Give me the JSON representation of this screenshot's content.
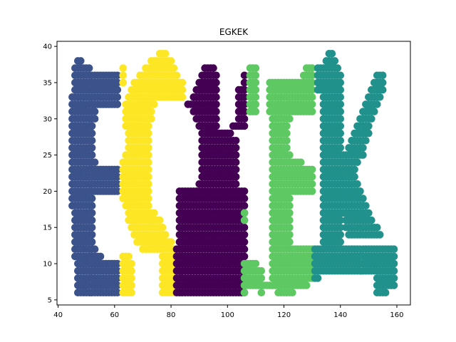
{
  "chart_data": {
    "type": "scatter",
    "title": "EGKEK",
    "xlabel": "",
    "ylabel": "",
    "xlim": [
      39.6,
      164.8
    ],
    "ylim": [
      4.3,
      40.7
    ],
    "x_ticks": [
      "40",
      "60",
      "80",
      "100",
      "120",
      "140",
      "160"
    ],
    "y_ticks": [
      "5",
      "10",
      "15",
      "20",
      "25",
      "30",
      "35",
      "40"
    ],
    "grid": false,
    "legend": "none",
    "series": [
      {
        "letter": "E",
        "color": "#3b528b",
        "spans": [
          [
            38,
            47,
            48
          ],
          [
            37,
            46,
            51
          ],
          [
            36,
            46,
            61
          ],
          [
            35,
            46,
            61
          ],
          [
            34,
            46,
            61
          ],
          [
            33,
            45,
            61
          ],
          [
            32,
            45,
            61
          ],
          [
            31,
            45,
            53
          ],
          [
            30,
            45,
            53
          ],
          [
            29,
            45,
            52
          ],
          [
            28,
            45,
            52
          ],
          [
            27,
            45,
            52
          ],
          [
            26,
            45,
            52
          ],
          [
            25,
            45,
            52
          ],
          [
            24,
            45,
            53
          ],
          [
            23,
            45,
            61
          ],
          [
            22,
            45,
            61
          ],
          [
            21,
            45,
            61
          ],
          [
            20,
            45,
            61
          ],
          [
            19,
            45,
            52
          ],
          [
            18,
            45,
            52
          ],
          [
            17,
            46,
            52
          ],
          [
            16,
            46,
            52
          ],
          [
            15,
            46,
            52
          ],
          [
            14,
            46,
            52
          ],
          [
            13,
            46,
            52
          ],
          [
            12,
            46,
            53
          ],
          [
            11,
            46,
            55
          ],
          [
            10,
            47,
            61
          ],
          [
            9,
            47,
            61
          ],
          [
            8,
            47,
            61
          ],
          [
            7,
            47,
            61
          ],
          [
            6,
            47,
            61
          ]
        ]
      },
      {
        "letter": "G",
        "color": "#fde725",
        "spans": [
          [
            39,
            76,
            78
          ],
          [
            38,
            73,
            80
          ],
          [
            37,
            71,
            81
          ],
          [
            36,
            69,
            82
          ],
          [
            35,
            67,
            84
          ],
          [
            34,
            66,
            84
          ],
          [
            33,
            65,
            84
          ],
          [
            32,
            64,
            74
          ],
          [
            31,
            64,
            73
          ],
          [
            30,
            64,
            73
          ],
          [
            29,
            64,
            72
          ],
          [
            28,
            65,
            72
          ],
          [
            27,
            65,
            72
          ],
          [
            26,
            65,
            72
          ],
          [
            25,
            64,
            72
          ],
          [
            24,
            63,
            72
          ],
          [
            23,
            63,
            72
          ],
          [
            22,
            63,
            72
          ],
          [
            21,
            63,
            72
          ],
          [
            20,
            63,
            72
          ],
          [
            19,
            63,
            72
          ],
          [
            18,
            64,
            72
          ],
          [
            17,
            65,
            74
          ],
          [
            16,
            65,
            76
          ],
          [
            15,
            66,
            77
          ],
          [
            14,
            67,
            78
          ],
          [
            13,
            68,
            80
          ],
          [
            12,
            70,
            81
          ],
          [
            11,
            77,
            81
          ],
          [
            10,
            77,
            81
          ],
          [
            9,
            77,
            81
          ],
          [
            8,
            77,
            81
          ],
          [
            7,
            77,
            81
          ],
          [
            6,
            77,
            81
          ],
          [
            37,
            63,
            63
          ],
          [
            36,
            63,
            63
          ],
          [
            35,
            63,
            63
          ],
          [
            11,
            63,
            65
          ],
          [
            10,
            63,
            66
          ],
          [
            9,
            63,
            66
          ],
          [
            8,
            63,
            66
          ],
          [
            7,
            63,
            66
          ],
          [
            6,
            63,
            66
          ]
        ]
      },
      {
        "letter": "K",
        "color": "#440154",
        "spans": [
          [
            37,
            92,
            95
          ],
          [
            36,
            91,
            96
          ],
          [
            35,
            90,
            96
          ],
          [
            34,
            89,
            96
          ],
          [
            33,
            88,
            96
          ],
          [
            32,
            86,
            96
          ],
          [
            31,
            88,
            96
          ],
          [
            30,
            89,
            96
          ],
          [
            29,
            90,
            96
          ],
          [
            28,
            91,
            101
          ],
          [
            27,
            91,
            103
          ],
          [
            26,
            91,
            103
          ],
          [
            25,
            91,
            103
          ],
          [
            24,
            91,
            103
          ],
          [
            23,
            91,
            103
          ],
          [
            22,
            91,
            103
          ],
          [
            21,
            90,
            103
          ],
          [
            20,
            83,
            106
          ],
          [
            19,
            83,
            106
          ],
          [
            18,
            83,
            106
          ],
          [
            17,
            83,
            106
          ],
          [
            16,
            83,
            106
          ],
          [
            15,
            83,
            106
          ],
          [
            14,
            83,
            106
          ],
          [
            13,
            83,
            106
          ],
          [
            12,
            82,
            106
          ],
          [
            11,
            82,
            106
          ],
          [
            10,
            82,
            106
          ],
          [
            9,
            82,
            106
          ],
          [
            8,
            82,
            106
          ],
          [
            7,
            82,
            106
          ],
          [
            6,
            82,
            106
          ],
          [
            36,
            106,
            106
          ],
          [
            35,
            106,
            106
          ],
          [
            34,
            104,
            106
          ],
          [
            33,
            104,
            106
          ],
          [
            32,
            104,
            106
          ],
          [
            31,
            104,
            106
          ],
          [
            30,
            104,
            106
          ],
          [
            29,
            102,
            106
          ]
        ]
      },
      {
        "letter": "E",
        "color": "#5ec962",
        "spans": [
          [
            37,
            108,
            110
          ],
          [
            36,
            108,
            110
          ],
          [
            35,
            108,
            110
          ],
          [
            34,
            108,
            110
          ],
          [
            33,
            108,
            110
          ],
          [
            32,
            108,
            110
          ],
          [
            31,
            108,
            110
          ],
          [
            37,
            128,
            130
          ],
          [
            36,
            127,
            130
          ],
          [
            35,
            115,
            130
          ],
          [
            34,
            115,
            130
          ],
          [
            33,
            115,
            130
          ],
          [
            32,
            115,
            130
          ],
          [
            31,
            115,
            130
          ],
          [
            30,
            116,
            122
          ],
          [
            29,
            116,
            121
          ],
          [
            28,
            116,
            121
          ],
          [
            27,
            116,
            121
          ],
          [
            26,
            116,
            121
          ],
          [
            25,
            116,
            122
          ],
          [
            24,
            116,
            126
          ],
          [
            23,
            116,
            130
          ],
          [
            22,
            116,
            130
          ],
          [
            21,
            116,
            130
          ],
          [
            20,
            116,
            130
          ],
          [
            19,
            116,
            122
          ],
          [
            18,
            116,
            122
          ],
          [
            17,
            116,
            122
          ],
          [
            16,
            116,
            122
          ],
          [
            15,
            116,
            122
          ],
          [
            14,
            116,
            122
          ],
          [
            13,
            116,
            122
          ],
          [
            12,
            116,
            130
          ],
          [
            11,
            116,
            130
          ],
          [
            10,
            116,
            130
          ],
          [
            9,
            116,
            130
          ],
          [
            8,
            116,
            130
          ],
          [
            7,
            116,
            128
          ],
          [
            17,
            106,
            106
          ],
          [
            16,
            106,
            106
          ],
          [
            10,
            106,
            110
          ],
          [
            9,
            106,
            112
          ],
          [
            8,
            106,
            112
          ],
          [
            7,
            106,
            115
          ],
          [
            6,
            106,
            106
          ],
          [
            6,
            112,
            112
          ],
          [
            6,
            118,
            123
          ]
        ]
      },
      {
        "letter": "K",
        "color": "#21918c",
        "spans": [
          [
            39,
            136,
            137
          ],
          [
            38,
            135,
            138
          ],
          [
            37,
            132,
            133
          ],
          [
            36,
            132,
            133
          ],
          [
            35,
            132,
            133
          ],
          [
            34,
            132,
            133
          ],
          [
            37,
            134,
            139
          ],
          [
            36,
            134,
            140
          ],
          [
            35,
            134,
            140
          ],
          [
            34,
            134,
            140
          ],
          [
            33,
            134,
            140
          ],
          [
            32,
            134,
            140
          ],
          [
            31,
            134,
            140
          ],
          [
            30,
            134,
            140
          ],
          [
            29,
            134,
            140
          ],
          [
            28,
            134,
            140
          ],
          [
            27,
            134,
            140
          ],
          [
            26,
            134,
            140
          ],
          [
            25,
            134,
            140
          ],
          [
            24,
            134,
            140
          ],
          [
            23,
            134,
            140
          ],
          [
            22,
            134,
            140
          ],
          [
            21,
            134,
            140
          ],
          [
            20,
            134,
            140
          ],
          [
            19,
            134,
            140
          ],
          [
            18,
            134,
            140
          ],
          [
            17,
            134,
            140
          ],
          [
            16,
            134,
            140
          ],
          [
            15,
            134,
            140
          ],
          [
            14,
            134,
            140
          ],
          [
            13,
            134,
            140
          ],
          [
            12,
            131,
            152
          ],
          [
            11,
            131,
            152
          ],
          [
            10,
            131,
            152
          ],
          [
            9,
            131,
            152
          ],
          [
            8,
            131,
            132
          ],
          [
            36,
            153,
            155
          ],
          [
            35,
            152,
            155
          ],
          [
            34,
            151,
            155
          ],
          [
            33,
            150,
            154
          ],
          [
            32,
            149,
            153
          ],
          [
            31,
            148,
            152
          ],
          [
            30,
            147,
            151
          ],
          [
            29,
            146,
            150
          ],
          [
            28,
            145,
            150
          ],
          [
            27,
            144,
            149
          ],
          [
            26,
            143,
            148
          ],
          [
            25,
            141,
            148
          ],
          [
            24,
            141,
            146
          ],
          [
            23,
            141,
            145
          ],
          [
            22,
            141,
            145
          ],
          [
            21,
            141,
            146
          ],
          [
            20,
            141,
            147
          ],
          [
            19,
            141,
            148
          ],
          [
            18,
            141,
            149
          ],
          [
            17,
            141,
            150
          ],
          [
            16,
            142,
            151
          ],
          [
            15,
            142,
            153
          ],
          [
            14,
            143,
            154
          ],
          [
            12,
            152,
            159
          ],
          [
            11,
            152,
            159
          ],
          [
            10,
            152,
            159
          ],
          [
            9,
            153,
            159
          ],
          [
            8,
            153,
            159
          ],
          [
            7,
            153,
            159
          ],
          [
            6,
            153,
            156
          ]
        ]
      }
    ]
  }
}
